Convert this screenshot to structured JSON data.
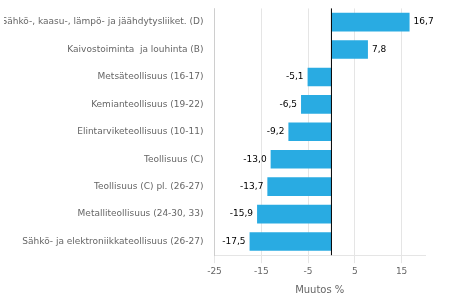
{
  "chart_data": {
    "type": "bar",
    "orientation": "horizontal",
    "categories": [
      "Sähkö- ja elektroniikkateollisuus (26-27)",
      "Metalliteollisuus (24-30, 33)",
      "Teollisuus (C) pl. (26-27)",
      "Teollisuus (C)",
      "Elintarviketeollisuus (10-11)",
      "Kemianteollisuus (19-22)",
      "Metsäteollisuus (16-17)",
      "Kaivostoiminta  ja louhinta (B)",
      "Sähkö-, kaasu-, lämpö- ja jäähdytysliiket. (D)"
    ],
    "values": [
      -17.5,
      -15.9,
      -13.7,
      -13.0,
      -9.2,
      -6.5,
      -5.1,
      7.8,
      16.7
    ],
    "value_labels": [
      "-17,5",
      "-15,9",
      "-13,7",
      "-13,0",
      "-9,2",
      "-6,5",
      "-5,1",
      "7,8",
      "16,7"
    ],
    "color": "#29ABE2",
    "xlabel": "Muutos %",
    "xlim": [
      -25,
      20
    ],
    "xticks": [
      -25,
      -15,
      -5,
      5,
      15
    ],
    "grid": true,
    "data_labels": true
  }
}
